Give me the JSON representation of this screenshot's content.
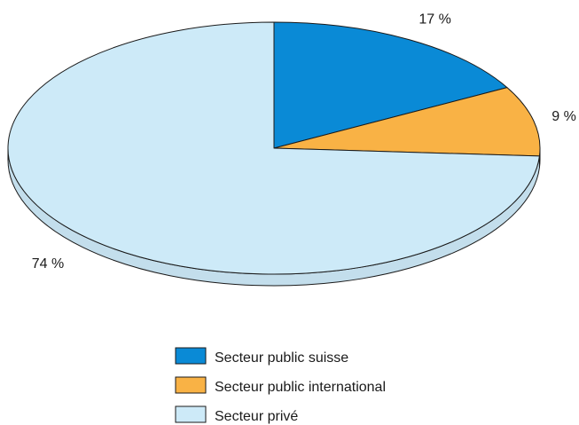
{
  "chart_data": {
    "type": "pie",
    "style": "3d",
    "grid": false,
    "legend_position": "bottom",
    "categories": [
      "Secteur public suisse",
      "Secteur public international",
      "Secteur privé"
    ],
    "values": [
      17,
      9,
      74
    ],
    "labels": [
      "17 %",
      "9 %",
      "74 %"
    ],
    "colors": {
      "Secteur public suisse": "#0a8ad6",
      "Secteur public international": "#f9b245",
      "Secteur privé": "#cdeaf8"
    },
    "legend": [
      {
        "label": "Secteur public suisse",
        "color": "#0a8ad6"
      },
      {
        "label": "Secteur public international",
        "color": "#f9b245"
      },
      {
        "label": "Secteur privé",
        "color": "#cdeaf8"
      }
    ]
  }
}
